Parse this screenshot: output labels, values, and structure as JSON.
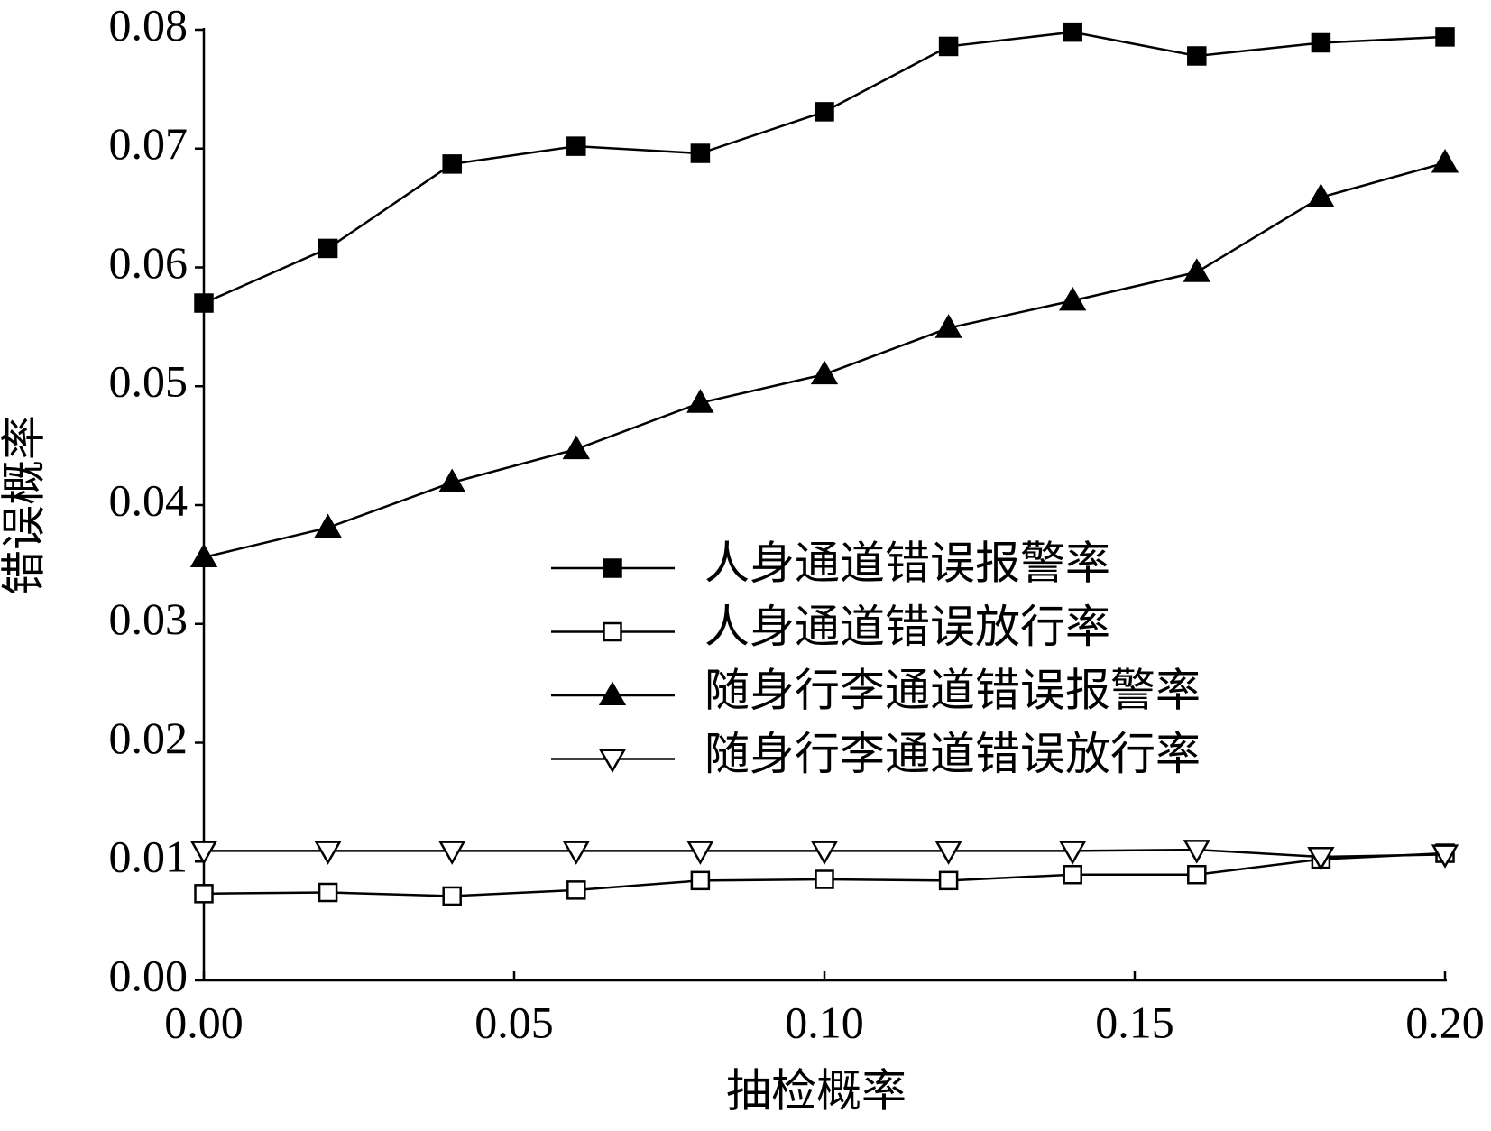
{
  "chart_data": {
    "type": "line",
    "x_label": "抽检概率",
    "y_label": "错误概率",
    "x": [
      0.0,
      0.02,
      0.04,
      0.06,
      0.08,
      0.1,
      0.12,
      0.14,
      0.16,
      0.18,
      0.2
    ],
    "series": [
      {
        "name": "人身通道错误报警率",
        "color": "#000000",
        "marker": "square-filled",
        "values": [
          0.057,
          0.0616,
          0.0687,
          0.0702,
          0.0696,
          0.0731,
          0.0786,
          0.0798,
          0.0778,
          0.0789,
          0.0794
        ]
      },
      {
        "name": "人身通道错误放行率",
        "color": "#000000",
        "marker": "square-open",
        "values": [
          0.0073,
          0.0074,
          0.0071,
          0.0076,
          0.0084,
          0.0085,
          0.0084,
          0.0089,
          0.0089,
          0.0102,
          0.0107
        ]
      },
      {
        "name": "随身行李通道错误报警率",
        "color": "#000000",
        "marker": "triangle-up-filled",
        "values": [
          0.0356,
          0.0381,
          0.0419,
          0.0447,
          0.0486,
          0.051,
          0.0549,
          0.0572,
          0.0596,
          0.0659,
          0.0688
        ]
      },
      {
        "name": "随身行李通道错误放行率",
        "color": "#000000",
        "marker": "triangle-down-open",
        "values": [
          0.0109,
          0.0109,
          0.0109,
          0.0109,
          0.0109,
          0.0109,
          0.0109,
          0.0109,
          0.011,
          0.0104,
          0.0106
        ]
      }
    ],
    "xlim": [
      0,
      0.2
    ],
    "xticks": [
      {
        "value": 0,
        "label": "0.00"
      },
      {
        "value": 0.05,
        "label": "0.05"
      },
      {
        "value": 0.1,
        "label": "0.10"
      },
      {
        "value": 0.15,
        "label": "0.15"
      },
      {
        "value": 0.2,
        "label": "0.20"
      }
    ],
    "ylim": [
      0,
      0.08
    ],
    "yticks": [
      {
        "value": 0,
        "label": "0.00"
      },
      {
        "value": 0.01,
        "label": "0.01"
      },
      {
        "value": 0.02,
        "label": "0.02"
      },
      {
        "value": 0.03,
        "label": "0.03"
      },
      {
        "value": 0.04,
        "label": "0.04"
      },
      {
        "value": 0.05,
        "label": "0.05"
      },
      {
        "value": 0.06,
        "label": "0.06"
      },
      {
        "value": 0.07,
        "label": "0.07"
      },
      {
        "value": 0.08,
        "label": "0.08"
      }
    ],
    "grid": false,
    "legend": "center right"
  }
}
